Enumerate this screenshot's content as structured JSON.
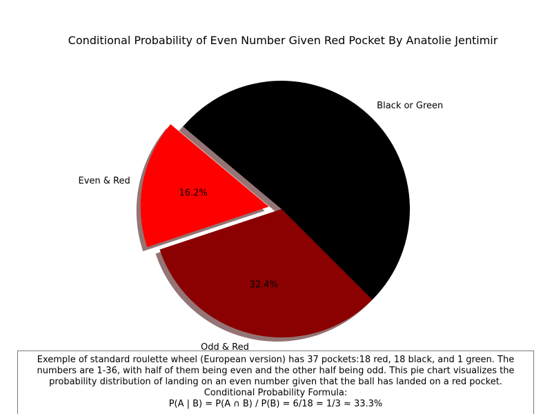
{
  "chart_data": {
    "type": "pie",
    "title": "Conditional Probability of Even Number Given Red Pocket By Anatolie Jentimir",
    "slices": [
      {
        "label": "Black or Green",
        "value": 51.4,
        "color": "#000000",
        "pct_label": "",
        "explode": false
      },
      {
        "label": "Even & Red",
        "value": 16.2,
        "color": "#ff0000",
        "pct_label": "16.2%",
        "explode": true
      },
      {
        "label": "Odd & Red",
        "value": 32.4,
        "color": "#8b0000",
        "pct_label": "32.4%",
        "explode": false
      }
    ],
    "shadow": true,
    "legend": "none"
  },
  "caption": {
    "lines": [
      "Exemple of standard roulette wheel (European version) has 37 pockets:18 red, 18 black, and 1 green. The",
      "numbers are 1-36, with half of them being even and the other half being odd. This pie chart visualizes the",
      "probability distribution of landing on an even number given that the ball has landed on a red pocket.",
      "Conditional Probability Formula:",
      "P(A | B) = P(A ∩ B) / P(B) = 6/18 = 1/3 ≈ 33.3%"
    ]
  }
}
